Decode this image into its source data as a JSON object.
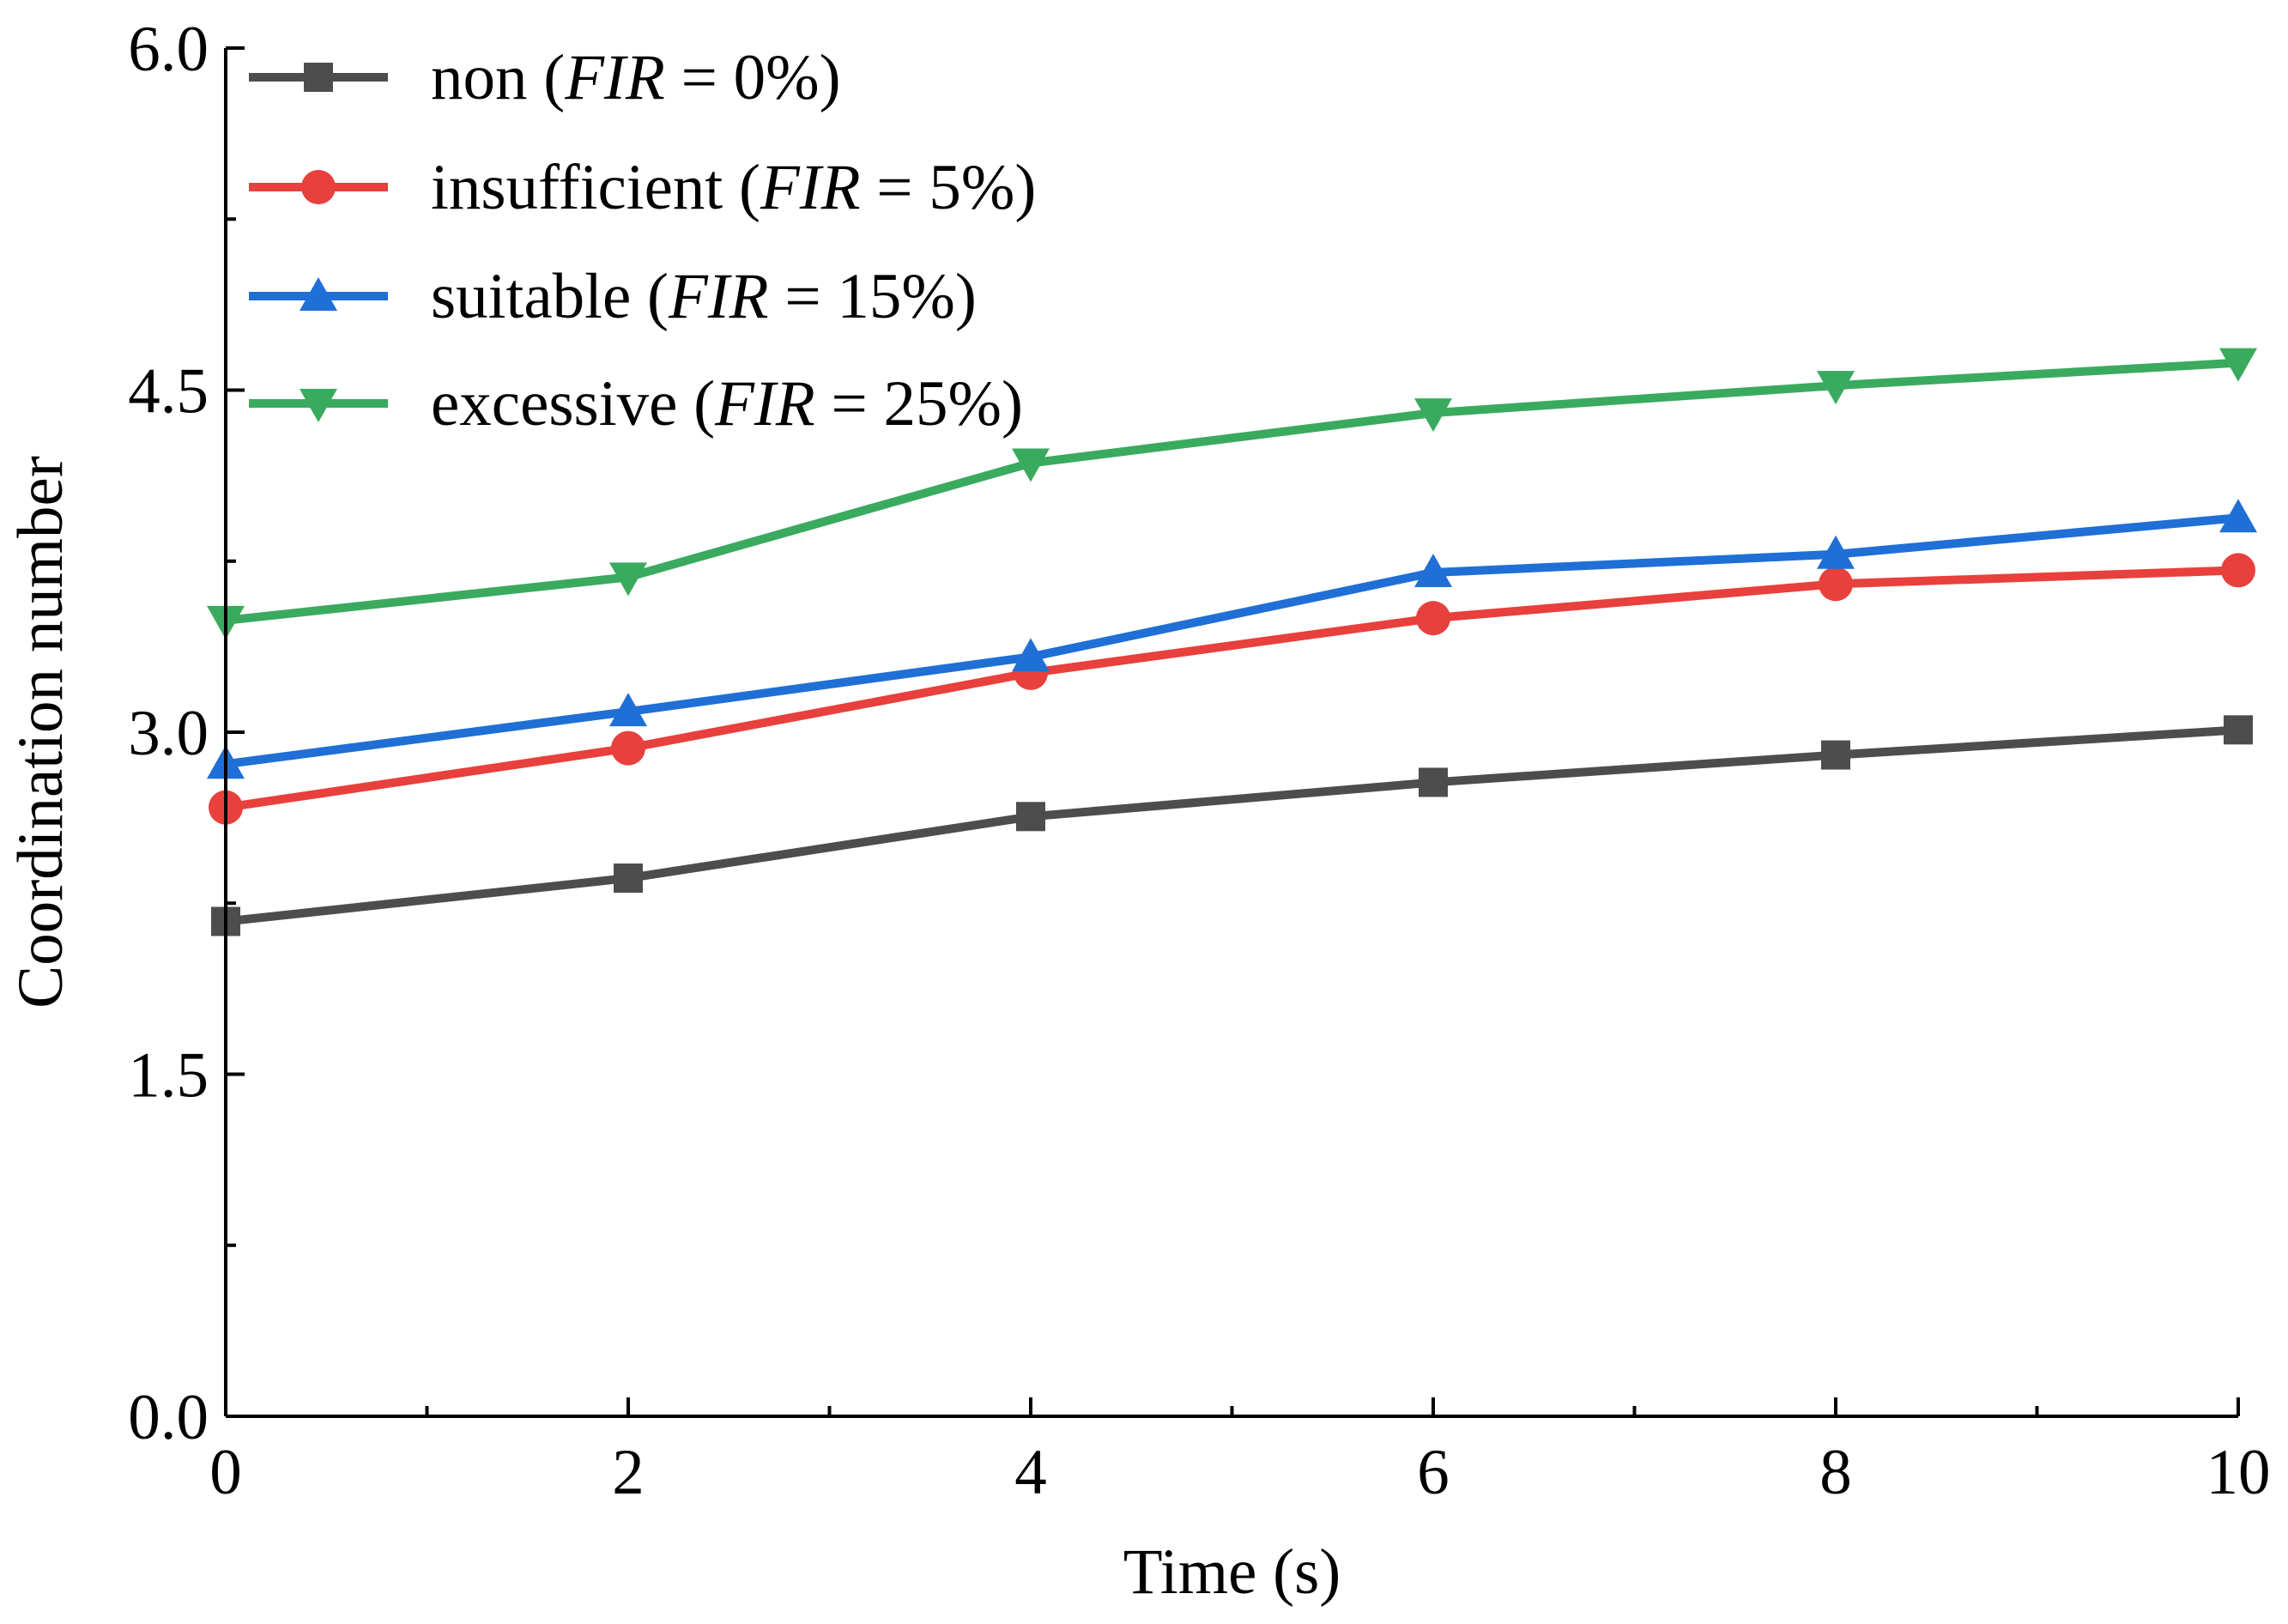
{
  "chart_data": {
    "type": "line",
    "title": "",
    "xlabel": "Time (s)",
    "ylabel": "Coordination number",
    "xlim": [
      0,
      10
    ],
    "ylim": [
      0,
      6
    ],
    "xticks": [
      0,
      2,
      4,
      6,
      8,
      10
    ],
    "xtick_labels": [
      "0",
      "2",
      "4",
      "6",
      "8",
      "10"
    ],
    "yticks": [
      0,
      1.5,
      3,
      4.5,
      6
    ],
    "ytick_labels": [
      "0.0",
      "1.5",
      "3.0",
      "4.5",
      "6.0"
    ],
    "x_minor_ticks": [
      1,
      3,
      5,
      7,
      9
    ],
    "y_minor_ticks": [
      0.75,
      2.25,
      3.75,
      5.25
    ],
    "grid": false,
    "legend_position": "top-left",
    "x": [
      0,
      2,
      4,
      6,
      8,
      10
    ],
    "series": [
      {
        "name": "non",
        "fir": "0%",
        "color": "#4d4d4d",
        "marker": "square",
        "values": [
          2.17,
          2.36,
          2.63,
          2.78,
          2.9,
          3.01
        ]
      },
      {
        "name": "insufficient",
        "fir": "5%",
        "color": "#e8403c",
        "marker": "circle",
        "values": [
          2.67,
          2.93,
          3.26,
          3.5,
          3.65,
          3.71
        ]
      },
      {
        "name": "suitable",
        "fir": "15%",
        "color": "#1f6fd6",
        "marker": "triangle-up",
        "values": [
          2.86,
          3.09,
          3.33,
          3.7,
          3.78,
          3.94
        ]
      },
      {
        "name": "excessive",
        "fir": "25%",
        "color": "#3aaa5f",
        "marker": "triangle-down",
        "values": [
          3.49,
          3.68,
          4.18,
          4.4,
          4.52,
          4.62
        ]
      }
    ]
  }
}
